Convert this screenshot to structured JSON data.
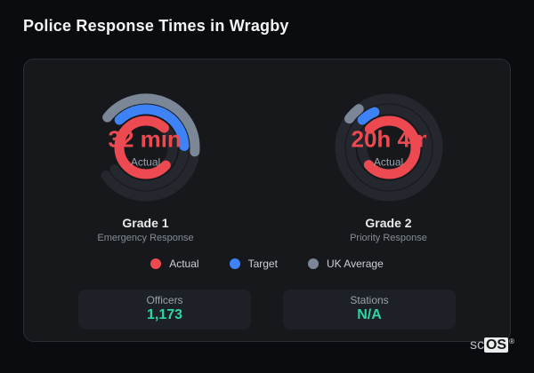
{
  "title": "Police Response Times in Wragby",
  "colors": {
    "background": "#0a0c0f",
    "card": "#16181c",
    "track": "#24272d",
    "actual": "#ec4a50",
    "target": "#3d82f6",
    "uk_average": "#7b8796",
    "stat_value": "#2fd6a4"
  },
  "chart_data": [
    {
      "type": "radial-gauge",
      "label": "Grade 1",
      "sublabel": "Emergency Response",
      "center_value": "32 min",
      "center_caption": "Actual",
      "series": [
        {
          "name": "UK Average",
          "color": "#7b8796",
          "radius": 55,
          "start": 308,
          "sweep": 147
        },
        {
          "name": "Target",
          "color": "#3d82f6",
          "radius": 43,
          "start": 316,
          "sweep": 132
        },
        {
          "name": "Actual",
          "color": "#ec4a50",
          "radius": 30,
          "start": 132,
          "sweep": 271
        }
      ],
      "tracks": [
        {
          "radius": 55,
          "start": 95,
          "sweep": 140
        },
        {
          "radius": 43,
          "start": 88,
          "sweep": 147
        },
        {
          "radius": 30,
          "start": 0,
          "sweep": 360
        }
      ]
    },
    {
      "type": "radial-gauge",
      "label": "Grade 2",
      "sublabel": "Priority Response",
      "center_value": "20h 4m",
      "center_caption": "Actual",
      "series": [
        {
          "name": "UK Average",
          "color": "#7b8796",
          "radius": 55,
          "start": 306,
          "sweep": 16
        },
        {
          "name": "Target",
          "color": "#3d82f6",
          "radius": 43,
          "start": 316,
          "sweep": 22
        },
        {
          "name": "Actual",
          "color": "#ec4a50",
          "radius": 30,
          "start": 314,
          "sweep": 275
        }
      ],
      "tracks": [
        {
          "radius": 55,
          "start": 0,
          "sweep": 360
        },
        {
          "radius": 43,
          "start": 0,
          "sweep": 360
        },
        {
          "radius": 30,
          "start": 0,
          "sweep": 360
        }
      ]
    }
  ],
  "legend": [
    {
      "label": "Actual",
      "color": "#ec4a50"
    },
    {
      "label": "Target",
      "color": "#3d82f6"
    },
    {
      "label": "UK Average",
      "color": "#7b8796"
    }
  ],
  "stats": [
    {
      "label": "Officers",
      "value": "1,173"
    },
    {
      "label": "Stations",
      "value": "N/A"
    }
  ],
  "logo": {
    "prefix": "sc",
    "suffix": "OS",
    "mark": "®"
  }
}
